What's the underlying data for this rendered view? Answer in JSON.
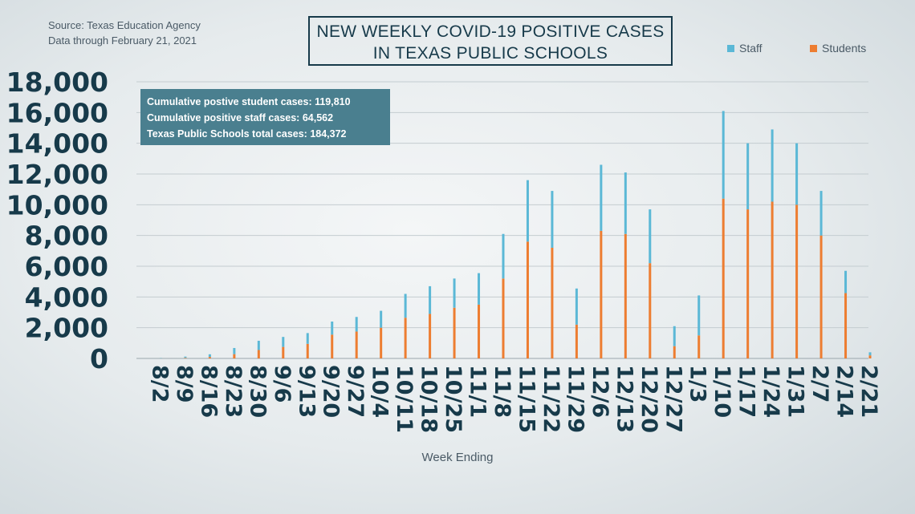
{
  "source": {
    "line1": "Source: Texas Education Agency",
    "line2": "Data through February 21, 2021"
  },
  "title": {
    "line1": "NEW WEEKLY COVID-19 POSITIVE CASES",
    "line2": "IN TEXAS PUBLIC SCHOOLS"
  },
  "info": {
    "line1": "Cumulative postive student cases: 119,810",
    "line2": "Cumulative positive staff cases: 64,562",
    "line3": "Texas Public Schools total cases: 184,372"
  },
  "colors": {
    "staff": "#5bb8d6",
    "students": "#ed7d31",
    "grid": "#c4ccd0",
    "text": "#173a4a"
  },
  "chart_data": {
    "type": "bar",
    "stacked": true,
    "title": "NEW WEEKLY COVID-19 POSITIVE CASES IN TEXAS PUBLIC SCHOOLS",
    "xlabel": "Week Ending",
    "ylabel": "",
    "ylim": [
      0,
      18000
    ],
    "yticks": [
      0,
      2000,
      4000,
      6000,
      8000,
      10000,
      12000,
      14000,
      16000,
      18000
    ],
    "ytick_labels": [
      "0",
      "2,000",
      "4,000",
      "6,000",
      "8,000",
      "10,000",
      "12,000",
      "14,000",
      "16,000",
      "18,000"
    ],
    "grid": true,
    "legend_position": "top-right",
    "categories": [
      "8/2",
      "8/9",
      "8/16",
      "8/23",
      "8/30",
      "9/6",
      "9/13",
      "9/20",
      "9/27",
      "10/4",
      "10/11",
      "10/18",
      "10/25",
      "11/1",
      "11/8",
      "11/15",
      "11/22",
      "11/29",
      "12/6",
      "12/13",
      "12/20",
      "12/27",
      "1/3",
      "1/10",
      "1/17",
      "1/24",
      "1/31",
      "2/7",
      "2/14",
      "2/21"
    ],
    "series": [
      {
        "name": "Students",
        "values": [
          10,
          40,
          100,
          280,
          550,
          750,
          950,
          1550,
          1750,
          2000,
          2650,
          2900,
          3300,
          3500,
          5200,
          7600,
          7200,
          2200,
          8300,
          8100,
          6200,
          800,
          1500,
          10400,
          9700,
          10200,
          10000,
          8000,
          4250,
          200
        ]
      },
      {
        "name": "Staff",
        "values": [
          20,
          80,
          170,
          400,
          600,
          650,
          700,
          850,
          950,
          1100,
          1550,
          1800,
          1900,
          2050,
          2900,
          4000,
          3700,
          2350,
          4300,
          4000,
          3500,
          1300,
          2600,
          5700,
          4300,
          4700,
          4000,
          2900,
          1450,
          200
        ]
      }
    ]
  }
}
